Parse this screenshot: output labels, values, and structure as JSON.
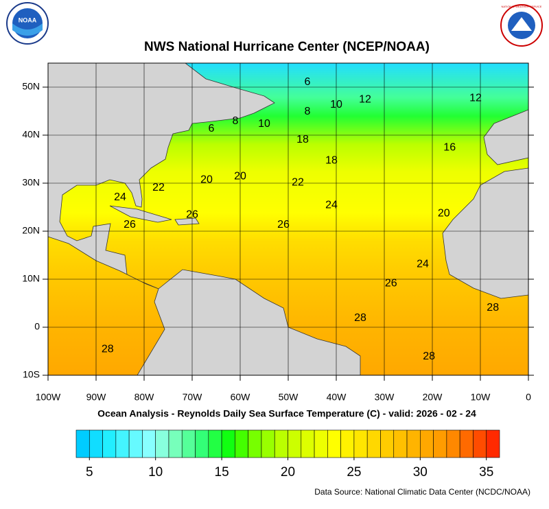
{
  "title": "NWS National Hurricane Center (NCEP/NOAA)",
  "subtitle": "Ocean Analysis - Reynolds Daily Sea Surface Temperature (C) - valid: 2026 - 02 - 24",
  "source": "Data Source: National Climatic Data Center (NCDC/NOAA)",
  "logos": {
    "left": "NOAA",
    "right": "NATIONAL WEATHER SERVICE"
  },
  "map": {
    "xlim": [
      -100,
      0
    ],
    "ylim": [
      -10,
      55
    ],
    "grid": true,
    "xticks": [
      {
        "value": -100,
        "label": "100W"
      },
      {
        "value": -90,
        "label": "90W"
      },
      {
        "value": -80,
        "label": "80W"
      },
      {
        "value": -70,
        "label": "70W"
      },
      {
        "value": -60,
        "label": "60W"
      },
      {
        "value": -50,
        "label": "50W"
      },
      {
        "value": -40,
        "label": "40W"
      },
      {
        "value": -30,
        "label": "30W"
      },
      {
        "value": -20,
        "label": "20W"
      },
      {
        "value": -10,
        "label": "10W"
      },
      0
    ],
    "yticks": [
      {
        "value": -10,
        "label": "10S"
      },
      0,
      {
        "value": 10,
        "label": "10N"
      },
      {
        "value": 20,
        "label": "20N"
      },
      {
        "value": 30,
        "label": "30N"
      },
      {
        "value": 40,
        "label": "40N"
      },
      {
        "value": 50,
        "label": "50N"
      }
    ],
    "contour_labels": [
      {
        "value": 6,
        "lon": -46,
        "lat": 51
      },
      {
        "value": 12,
        "lon": -34,
        "lat": 47.4
      },
      {
        "value": 10,
        "lon": -40,
        "lat": 46.3
      },
      {
        "value": 12,
        "lon": -11,
        "lat": 47.7
      },
      {
        "value": 8,
        "lon": -46,
        "lat": 44.9
      },
      {
        "value": 6,
        "lon": -66,
        "lat": 41.3
      },
      {
        "value": 8,
        "lon": -61,
        "lat": 42.9
      },
      {
        "value": 10,
        "lon": -55,
        "lat": 42.3
      },
      {
        "value": 18,
        "lon": -47,
        "lat": 39
      },
      {
        "value": 16,
        "lon": -16.4,
        "lat": 37.4
      },
      {
        "value": 18,
        "lon": -41,
        "lat": 34.7
      },
      {
        "value": 20,
        "lon": -67,
        "lat": 30.7
      },
      {
        "value": 20,
        "lon": -60,
        "lat": 31.4
      },
      {
        "value": 22,
        "lon": -77,
        "lat": 29
      },
      {
        "value": 22,
        "lon": -48,
        "lat": 30.1
      },
      {
        "value": 24,
        "lon": -85,
        "lat": 27
      },
      {
        "value": 24,
        "lon": -41,
        "lat": 25.4
      },
      {
        "value": 26,
        "lon": -83,
        "lat": 21.3
      },
      {
        "value": 26,
        "lon": -70,
        "lat": 23.4
      },
      {
        "value": 26,
        "lon": -51,
        "lat": 21.3
      },
      {
        "value": 20,
        "lon": -17.6,
        "lat": 23.7
      },
      {
        "value": 24,
        "lon": -22,
        "lat": 13.1
      },
      {
        "value": 26,
        "lon": -28.6,
        "lat": 9.1
      },
      {
        "value": 28,
        "lon": -35,
        "lat": 1.9
      },
      {
        "value": 28,
        "lon": -7.4,
        "lat": 4
      },
      {
        "value": 28,
        "lon": -87.6,
        "lat": -4.6
      },
      {
        "value": 28,
        "lon": -20.7,
        "lat": -6.1
      }
    ]
  },
  "colorbar": {
    "lim": [
      4,
      36
    ],
    "colors": [
      "#00ccff",
      "#11ddff",
      "#22eeff",
      "#44f4ff",
      "#66faff",
      "#88ffff",
      "#88ffdd",
      "#77ffbb",
      "#55ff99",
      "#33ff77",
      "#22ff44",
      "#11ff11",
      "#44ff00",
      "#77ff00",
      "#99ff00",
      "#bbff00",
      "#ccff00",
      "#ddff00",
      "#eeff00",
      "#ffff00",
      "#fff200",
      "#ffe600",
      "#ffd800",
      "#ffcc00",
      "#ffc000",
      "#ffb400",
      "#ffa800",
      "#ff9c00",
      "#ff8800",
      "#ff6a00",
      "#ff4c00",
      "#ff2a00"
    ],
    "ticks": [
      5,
      10,
      15,
      20,
      25,
      30,
      35
    ]
  }
}
